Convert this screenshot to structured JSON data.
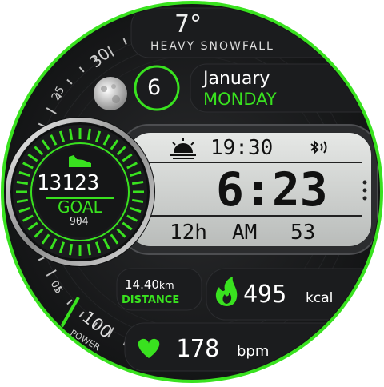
{
  "weather": {
    "temperature": "7°",
    "condition": "HEAVY SNOWFALL"
  },
  "date": {
    "day": "6",
    "month": "January",
    "weekday": "MONDAY"
  },
  "steps": {
    "count": "13123",
    "goal_label": "GOAL",
    "goal_value": "904",
    "icon": "shoe-icon"
  },
  "time": {
    "sunrise_time": "19:30",
    "main_time": "6:23",
    "format": "12h",
    "ampm": "AM",
    "seconds": "53",
    "sunrise_icon": "sunrise-icon",
    "status_icon": "bluetooth-icon"
  },
  "moon": {
    "icon": "moon-phase-icon"
  },
  "bezel": {
    "marks": [
      "30",
      "25",
      "05",
      "100"
    ],
    "power_label": "POWER"
  },
  "distance": {
    "value": "14.40",
    "unit": "km",
    "label": "DISTANCE"
  },
  "calories": {
    "value": "495",
    "unit": "kcal",
    "icon": "flame-icon"
  },
  "heart_rate": {
    "value": "178",
    "unit": "bpm",
    "icon": "heart-icon"
  },
  "colors": {
    "accent": "#39e21f",
    "panel": "#1d1e20",
    "lcd": "#d4d6d4",
    "text": "#eeeeee"
  }
}
